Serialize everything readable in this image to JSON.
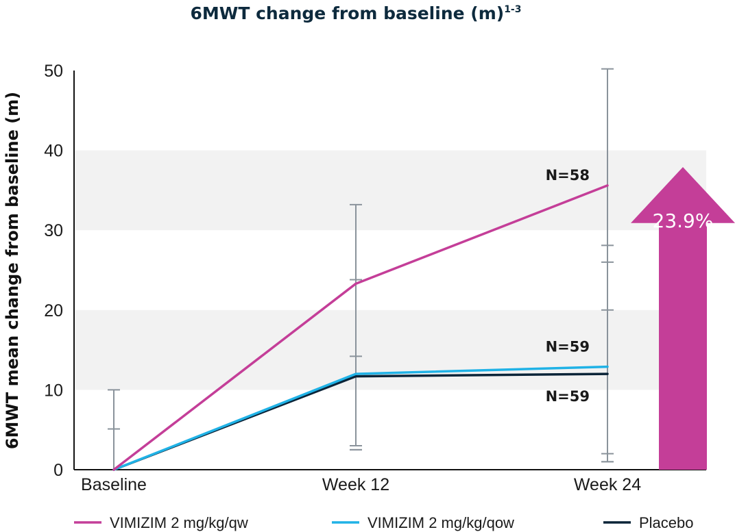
{
  "chart_data": {
    "type": "line",
    "title": "6MWT change from baseline (m)",
    "title_superscript": "1-3",
    "ylabel": "6MWT mean change from baseline (m)",
    "xlabel": "",
    "categories": [
      "Baseline",
      "Week 12",
      "Week 24"
    ],
    "ylim": [
      0,
      50
    ],
    "yticks": [
      0,
      10,
      20,
      30,
      40,
      50
    ],
    "grid": "alternating horizontal bands",
    "series": [
      {
        "name": "VIMIZIM 2 mg/kg/qw",
        "color": "#c43e98",
        "values": [
          0,
          23.3,
          35.6
        ],
        "n_label": "N=58",
        "error_bars": [
          [
            0,
            10.0
          ],
          [
            3.0,
            33.2
          ],
          [
            1.0,
            50.2
          ]
        ]
      },
      {
        "name": "VIMIZIM 2 mg/kg/qow",
        "color": "#20b2e6",
        "values": [
          0,
          12.0,
          12.9
        ],
        "n_label": "N=59",
        "error_bars": [
          [
            0,
            5.1
          ],
          [
            2.5,
            23.8
          ],
          [
            2.0,
            26.0
          ]
        ]
      },
      {
        "name": "Placebo",
        "color": "#0b2438",
        "values": [
          0,
          11.7,
          12.0
        ],
        "n_label": "N=59",
        "error_bars": [
          [
            0,
            5.1
          ],
          [
            2.5,
            14.2
          ],
          [
            1.0,
            28.1
          ]
        ]
      }
    ],
    "extra_error_caps": [
      [],
      [],
      [
        20.0
      ]
    ],
    "annotation": {
      "text": "23.9%",
      "shape": "up-arrow",
      "color": "#c43e98",
      "from": 0,
      "to": 38
    },
    "legend_position": "bottom"
  }
}
